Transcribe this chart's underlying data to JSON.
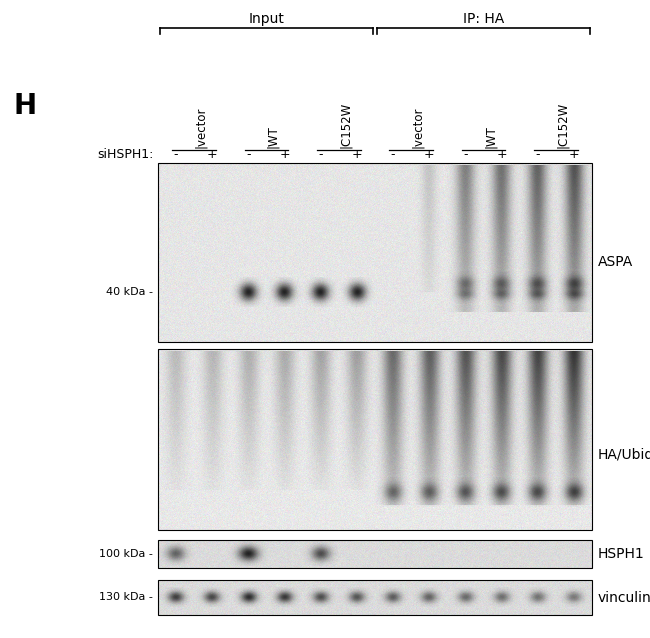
{
  "title_letter": "H",
  "input_label": "Input",
  "ip_label": "IP: HA",
  "group_labels": [
    "|vector",
    "|WT",
    "|C152W",
    "|vector",
    "|WT",
    "|C152W"
  ],
  "siHSPH1_label": "siHSPH1:",
  "pm_labels": [
    "-",
    "+",
    "-",
    "+",
    "-",
    "+",
    "-",
    "+",
    "-",
    "+",
    "-",
    "+"
  ],
  "panel1_label": "ASPA",
  "panel2_label": "HA/Ubiquitin",
  "panel3_label": "HSPH1",
  "panel4_label": "vinculin",
  "kda_40": "40 kDa -",
  "kda_100": "100 kDa -",
  "kda_130": "130 kDa -",
  "fig_width": 6.5,
  "fig_height": 6.38,
  "bg_color": "#ffffff"
}
